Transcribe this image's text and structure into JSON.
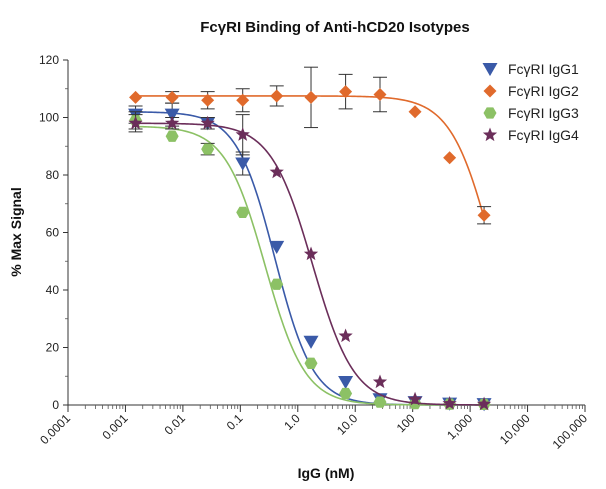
{
  "chart_data": {
    "type": "scatter",
    "title": "FcγRI Binding of Anti-hCD20 Isotypes",
    "xlabel": "IgG (nM)",
    "ylabel": "% Max Signal",
    "x_scale": "log",
    "xlim": [
      0.0001,
      100000
    ],
    "ylim": [
      0,
      120
    ],
    "x_ticks": [
      0.0001,
      0.001,
      0.01,
      0.1,
      1,
      10,
      100,
      1000,
      10000,
      100000
    ],
    "x_tick_labels": [
      "0.0001",
      "0.001",
      "0.01",
      "0.1",
      "1.0",
      "10.0",
      "100",
      "1,000",
      "10,000",
      "100,000"
    ],
    "y_ticks": [
      0,
      20,
      40,
      60,
      80,
      100,
      120
    ],
    "y_tick_labels": [
      "0",
      "20",
      "40",
      "60",
      "80",
      "100",
      "120"
    ],
    "legend_position": "top-right",
    "series": [
      {
        "name": "FcγRI IgG1",
        "color": "#3a5aa8",
        "marker": "triangle-down",
        "x": [
          0.0015,
          0.0065,
          0.027,
          0.11,
          0.43,
          1.7,
          6.8,
          27,
          110,
          440,
          1750
        ],
        "y": [
          101,
          101,
          98,
          84,
          55,
          22,
          8,
          2,
          1,
          0.5,
          0.3
        ],
        "err": [
          3,
          4,
          2,
          4,
          0,
          0,
          0,
          0,
          0,
          0,
          0
        ],
        "fit": {
          "top": 102,
          "bottom": 0,
          "ec50": 0.4,
          "hill": 1.3
        }
      },
      {
        "name": "FcγRI IgG2",
        "color": "#e06a2c",
        "marker": "diamond",
        "x": [
          0.0015,
          0.0065,
          0.027,
          0.11,
          0.43,
          1.7,
          6.8,
          27,
          110,
          440,
          1750
        ],
        "y": [
          107,
          107,
          106,
          106,
          107.5,
          107,
          109,
          108,
          102,
          86,
          66
        ],
        "err": [
          0,
          2,
          3,
          4,
          3.5,
          10.5,
          6,
          6,
          0,
          0,
          3
        ],
        "fit": {
          "top": 107.5,
          "bottom": 0,
          "ec50": 2500,
          "hill": 1.2
        }
      },
      {
        "name": "FcγRI IgG3",
        "color": "#8cc165",
        "marker": "hexagon",
        "x": [
          0.0015,
          0.0065,
          0.027,
          0.11,
          0.43,
          1.7,
          6.8,
          27,
          110,
          440,
          1750
        ],
        "y": [
          99,
          93.5,
          89,
          67,
          42,
          14.5,
          4,
          1,
          0.5,
          0.3,
          0.2
        ],
        "err": [
          3,
          0,
          2,
          0,
          0,
          0,
          0,
          0,
          0,
          0,
          0
        ],
        "fit": {
          "top": 97,
          "bottom": 0,
          "ec50": 0.27,
          "hill": 1.25
        }
      },
      {
        "name": "FcγRI IgG4",
        "color": "#6b2e5a",
        "marker": "star",
        "x": [
          0.0015,
          0.0065,
          0.027,
          0.11,
          0.43,
          1.7,
          6.8,
          27,
          110,
          440,
          1750
        ],
        "y": [
          98,
          98,
          98,
          94,
          81,
          52.5,
          24,
          8,
          2,
          0.5,
          0.3
        ],
        "err": [
          3,
          2,
          2,
          7,
          0,
          0,
          0,
          0,
          0,
          0,
          0
        ],
        "fit": {
          "top": 98,
          "bottom": 0,
          "ec50": 1.8,
          "hill": 1.2
        }
      }
    ]
  }
}
